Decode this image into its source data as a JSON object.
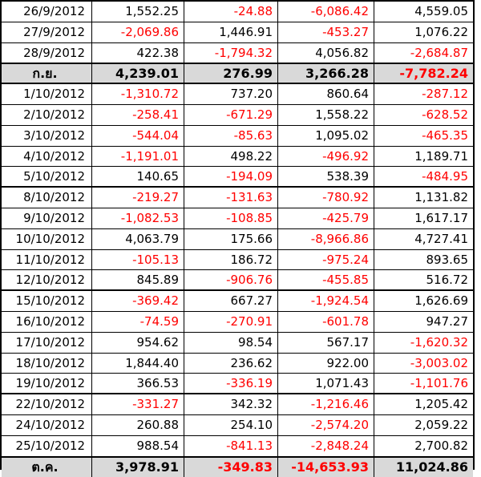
{
  "colors": {
    "negative": "#ff0000",
    "positive": "#000000",
    "summary_bg": "#d9d9d9"
  },
  "rows": [
    {
      "type": "data",
      "date": "26/9/2012",
      "values": [
        "1,552.25",
        "-24.88",
        "-6,086.42",
        "4,559.05"
      ]
    },
    {
      "type": "data",
      "date": "27/9/2012",
      "values": [
        "-2,069.86",
        "1,446.91",
        "-453.27",
        "1,076.22"
      ]
    },
    {
      "type": "data",
      "date": "28/9/2012",
      "values": [
        "422.38",
        "-1,794.32",
        "4,056.82",
        "-2,684.87"
      ]
    },
    {
      "type": "summary",
      "date": "ก.ย.",
      "values": [
        "4,239.01",
        "276.99",
        "3,266.28",
        "-7,782.24"
      ]
    },
    {
      "type": "data",
      "date": "1/10/2012",
      "values": [
        "-1,310.72",
        "737.20",
        "860.64",
        "-287.12"
      ]
    },
    {
      "type": "data",
      "date": "2/10/2012",
      "values": [
        "-258.41",
        "-671.29",
        "1,558.22",
        "-628.52"
      ]
    },
    {
      "type": "data",
      "date": "3/10/2012",
      "values": [
        "-544.04",
        "-85.63",
        "1,095.02",
        "-465.35"
      ]
    },
    {
      "type": "data",
      "date": "4/10/2012",
      "values": [
        "-1,191.01",
        "498.22",
        "-496.92",
        "1,189.71"
      ]
    },
    {
      "type": "data",
      "date": "5/10/2012",
      "week_end": true,
      "values": [
        "140.65",
        "-194.09",
        "538.39",
        "-484.95"
      ]
    },
    {
      "type": "data",
      "date": "8/10/2012",
      "values": [
        "-219.27",
        "-131.63",
        "-780.92",
        "1,131.82"
      ]
    },
    {
      "type": "data",
      "date": "9/10/2012",
      "values": [
        "-1,082.53",
        "-108.85",
        "-425.79",
        "1,617.17"
      ]
    },
    {
      "type": "data",
      "date": "10/10/2012",
      "values": [
        "4,063.79",
        "175.66",
        "-8,966.86",
        "4,727.41"
      ]
    },
    {
      "type": "data",
      "date": "11/10/2012",
      "values": [
        "-105.13",
        "186.72",
        "-975.24",
        "893.65"
      ]
    },
    {
      "type": "data",
      "date": "12/10/2012",
      "week_end": true,
      "values": [
        "845.89",
        "-906.76",
        "-455.85",
        "516.72"
      ]
    },
    {
      "type": "data",
      "date": "15/10/2012",
      "values": [
        "-369.42",
        "667.27",
        "-1,924.54",
        "1,626.69"
      ]
    },
    {
      "type": "data",
      "date": "16/10/2012",
      "values": [
        "-74.59",
        "-270.91",
        "-601.78",
        "947.27"
      ]
    },
    {
      "type": "data",
      "date": "17/10/2012",
      "values": [
        "954.62",
        "98.54",
        "567.17",
        "-1,620.32"
      ]
    },
    {
      "type": "data",
      "date": "18/10/2012",
      "values": [
        "1,844.40",
        "236.62",
        "922.00",
        "-3,003.02"
      ]
    },
    {
      "type": "data",
      "date": "19/10/2012",
      "week_end": true,
      "values": [
        "366.53",
        "-336.19",
        "1,071.43",
        "-1,101.76"
      ]
    },
    {
      "type": "data",
      "date": "22/10/2012",
      "values": [
        "-331.27",
        "342.32",
        "-1,216.46",
        "1,205.42"
      ]
    },
    {
      "type": "data",
      "date": "24/10/2012",
      "values": [
        "260.88",
        "254.10",
        "-2,574.20",
        "2,059.22"
      ]
    },
    {
      "type": "data",
      "date": "25/10/2012",
      "values": [
        "988.54",
        "-841.13",
        "-2,848.24",
        "2,700.82"
      ]
    },
    {
      "type": "summary",
      "date": "ต.ค.",
      "values": [
        "3,978.91",
        "-349.83",
        "-14,653.93",
        "11,024.86"
      ]
    }
  ]
}
